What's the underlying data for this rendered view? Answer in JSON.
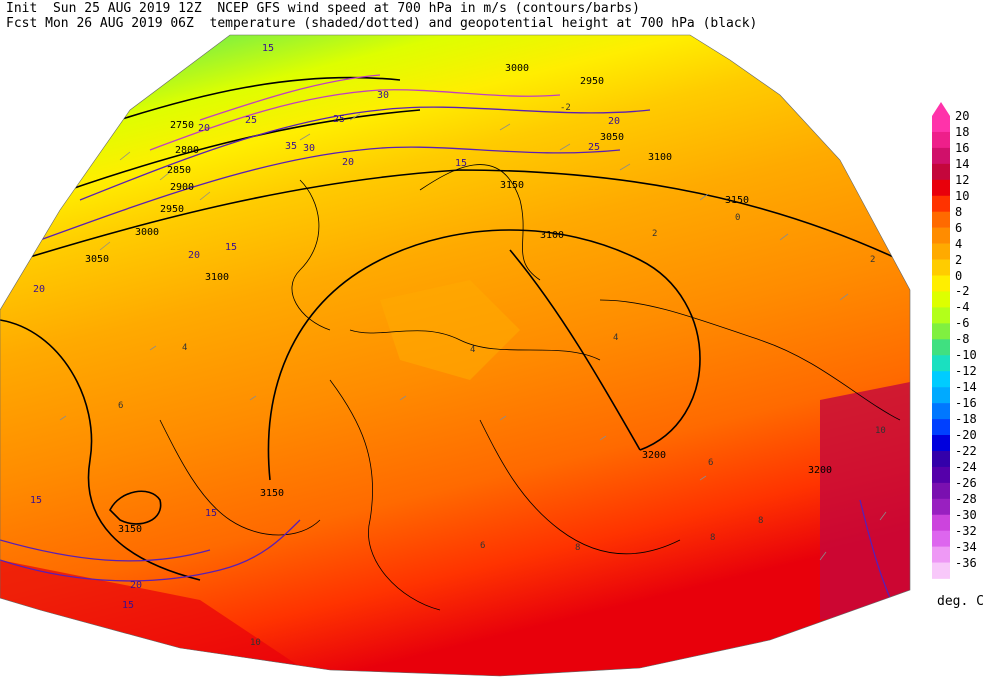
{
  "header": {
    "line1": "Init  Sun 25 AUG 2019 12Z  NCEP GFS wind speed at 700 hPa in m/s (contours/barbs)",
    "line2": "Fcst Mon 26 AUG 2019 06Z  temperature (shaded/dotted) and geopotential height at 700 hPa (black)"
  },
  "colorbar": {
    "units": "deg. C",
    "levels": [
      {
        "label": "20",
        "color": "#ff33aa"
      },
      {
        "label": "18",
        "color": "#ee1f8a"
      },
      {
        "label": "16",
        "color": "#d0106a"
      },
      {
        "label": "14",
        "color": "#c4073c"
      },
      {
        "label": "12",
        "color": "#e8000b"
      },
      {
        "label": "10",
        "color": "#ff3300"
      },
      {
        "label": "8",
        "color": "#ff6a00"
      },
      {
        "label": "6",
        "color": "#ff8c00"
      },
      {
        "label": "4",
        "color": "#ffaa00"
      },
      {
        "label": "2",
        "color": "#ffcc00"
      },
      {
        "label": "0",
        "color": "#ffee00"
      },
      {
        "label": "-2",
        "color": "#ddff00"
      },
      {
        "label": "-4",
        "color": "#b3ff1a"
      },
      {
        "label": "-6",
        "color": "#80f040"
      },
      {
        "label": "-8",
        "color": "#40e080"
      },
      {
        "label": "-10",
        "color": "#1ae0c0"
      },
      {
        "label": "-12",
        "color": "#00ccff"
      },
      {
        "label": "-14",
        "color": "#00aaff"
      },
      {
        "label": "-16",
        "color": "#0077ff"
      },
      {
        "label": "-18",
        "color": "#0040ff"
      },
      {
        "label": "-20",
        "color": "#0000dd"
      },
      {
        "label": "-22",
        "color": "#3300aa"
      },
      {
        "label": "-24",
        "color": "#5500aa"
      },
      {
        "label": "-26",
        "color": "#7a10b0"
      },
      {
        "label": "-28",
        "color": "#9920c0"
      },
      {
        "label": "-30",
        "color": "#cc44dd"
      },
      {
        "label": "-32",
        "color": "#dd66ee"
      },
      {
        "label": "-34",
        "color": "#ee99f5"
      },
      {
        "label": "-36",
        "color": "#f8c8fa"
      }
    ]
  },
  "height_labels": [
    "2750",
    "2800",
    "2850",
    "2900",
    "2950",
    "3000",
    "3050",
    "3100",
    "3150",
    "3200",
    "3150",
    "3100",
    "3150",
    "3150",
    "3200",
    "2950",
    "3000",
    "3050",
    "3100"
  ],
  "wind_labels": [
    "15",
    "20",
    "25",
    "30",
    "35",
    "20",
    "25",
    "30",
    "15",
    "20",
    "15",
    "20",
    "25",
    "15",
    "20",
    "15",
    "15",
    "20"
  ],
  "temp_labels": [
    "2",
    "4",
    "6",
    "8",
    "10",
    "0",
    "-2",
    "4",
    "6",
    "2",
    "8",
    "4",
    "6",
    "8",
    "10"
  ],
  "colors": {
    "height_contour": "#000000",
    "wind_contour": "#5a1fb4",
    "wind_contour_strong": "#c040c0",
    "border": "#000000",
    "barb": "#8c8c8c"
  }
}
